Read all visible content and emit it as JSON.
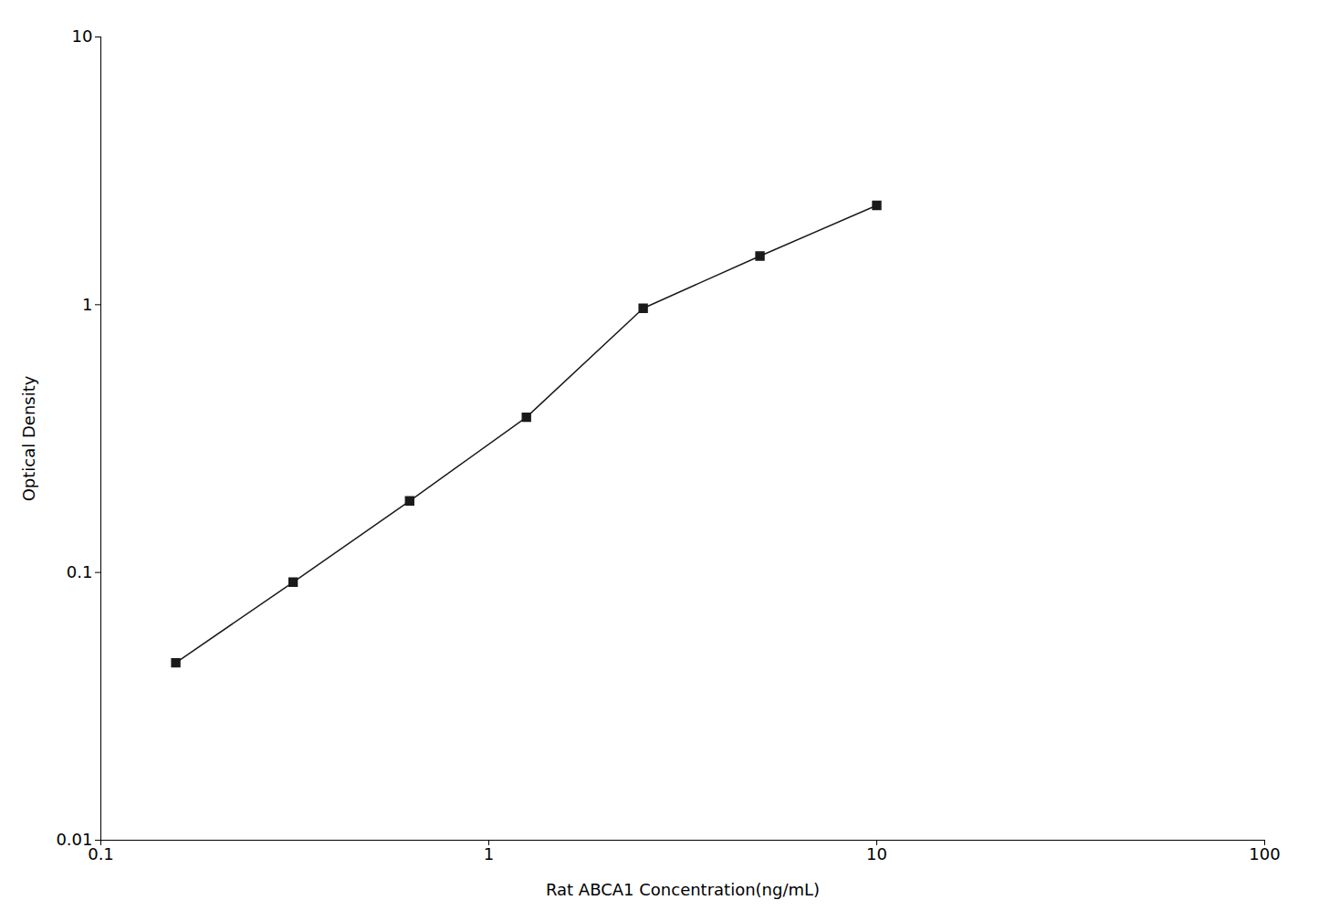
{
  "chart_data": {
    "type": "line",
    "xlabel": "Rat ABCA1 Concentration(ng/mL)",
    "ylabel": "Optical Density",
    "x": [
      0.156,
      0.313,
      0.625,
      1.25,
      2.5,
      5.0,
      10.0
    ],
    "values": [
      0.046,
      0.092,
      0.185,
      0.38,
      0.97,
      1.52,
      2.35
    ],
    "color": "#1a1a1a",
    "marker": "square",
    "log": true,
    "xlim": [
      0.1,
      100
    ],
    "ylim": [
      0.01,
      10
    ],
    "xticks": [
      0.1,
      1,
      10,
      100
    ],
    "yticks": [
      0.01,
      0.1,
      1,
      10
    ],
    "grid": false
  }
}
